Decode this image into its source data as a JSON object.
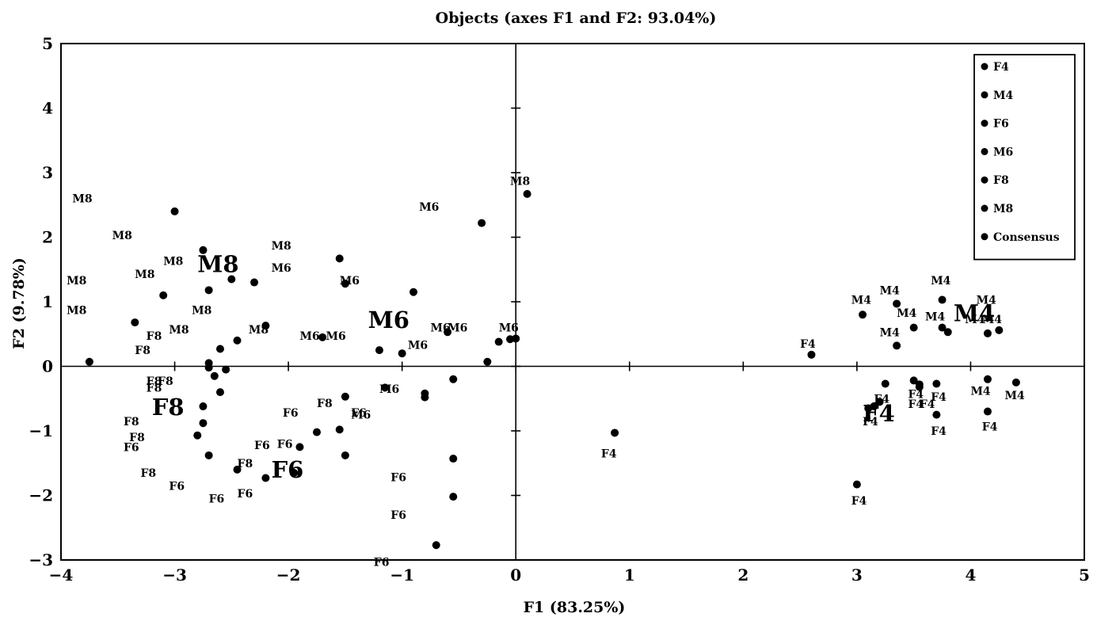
{
  "chart_data": {
    "type": "scatter",
    "title": "Objects (axes F1 and F2: 93.04%)",
    "xlabel": "F1 (83.25%)",
    "ylabel": "F2 (9.78%)",
    "xlim": [
      -4,
      5
    ],
    "ylim": [
      -3,
      5
    ],
    "xticks": [
      -4,
      -3,
      -2,
      -1,
      0,
      1,
      2,
      3,
      4,
      5
    ],
    "yticks": [
      -3,
      -2,
      -1,
      0,
      1,
      2,
      3,
      4,
      5
    ],
    "legend": [
      "F4",
      "M4",
      "F6",
      "M6",
      "F8",
      "M8",
      "Consensus"
    ],
    "legend_position": "top-right",
    "reference_lines": "x=0 and y=0",
    "points": [
      {
        "x": 0.1,
        "y": 2.67
      },
      {
        "x": -0.3,
        "y": 2.22
      },
      {
        "x": -0.9,
        "y": 1.15
      },
      {
        "x": -1.55,
        "y": 1.67
      },
      {
        "x": -1.5,
        "y": 1.28
      },
      {
        "x": -2.3,
        "y": 1.3
      },
      {
        "x": -2.5,
        "y": 1.35
      },
      {
        "x": -2.7,
        "y": 1.18
      },
      {
        "x": -2.75,
        "y": 1.8
      },
      {
        "x": -3.0,
        "y": 2.4
      },
      {
        "x": -3.1,
        "y": 1.1
      },
      {
        "x": -3.35,
        "y": 0.68
      },
      {
        "x": -3.75,
        "y": 0.07
      },
      {
        "x": -2.2,
        "y": 0.63
      },
      {
        "x": -2.45,
        "y": 0.4
      },
      {
        "x": -2.6,
        "y": 0.27
      },
      {
        "x": -1.7,
        "y": 0.45
      },
      {
        "x": -1.2,
        "y": 0.25
      },
      {
        "x": -1.0,
        "y": 0.2
      },
      {
        "x": -0.6,
        "y": 0.53
      },
      {
        "x": -0.15,
        "y": 0.38
      },
      {
        "x": -0.05,
        "y": 0.42
      },
      {
        "x": 0.0,
        "y": 0.43
      },
      {
        "x": -0.25,
        "y": 0.07
      },
      {
        "x": -2.7,
        "y": 0.05
      },
      {
        "x": -2.7,
        "y": -0.02
      },
      {
        "x": -2.65,
        "y": -0.15
      },
      {
        "x": -2.55,
        "y": -0.05
      },
      {
        "x": -2.6,
        "y": -0.4
      },
      {
        "x": -2.75,
        "y": -0.62
      },
      {
        "x": -2.75,
        "y": -0.88
      },
      {
        "x": -2.8,
        "y": -1.07
      },
      {
        "x": -2.7,
        "y": -1.38
      },
      {
        "x": -2.45,
        "y": -1.6
      },
      {
        "x": -2.2,
        "y": -1.73
      },
      {
        "x": -1.95,
        "y": -1.65
      },
      {
        "x": -1.9,
        "y": -1.25
      },
      {
        "x": -1.75,
        "y": -1.02
      },
      {
        "x": -1.55,
        "y": -0.98
      },
      {
        "x": -1.5,
        "y": -0.47
      },
      {
        "x": -1.5,
        "y": -1.38
      },
      {
        "x": -1.15,
        "y": -0.33
      },
      {
        "x": -0.8,
        "y": -0.42
      },
      {
        "x": -0.8,
        "y": -0.48
      },
      {
        "x": -0.55,
        "y": -0.2
      },
      {
        "x": -0.55,
        "y": -1.43
      },
      {
        "x": -0.55,
        "y": -2.02
      },
      {
        "x": -0.7,
        "y": -2.77
      },
      {
        "x": 0.87,
        "y": -1.03
      },
      {
        "x": 2.6,
        "y": 0.18
      },
      {
        "x": 3.0,
        "y": -1.83
      },
      {
        "x": 3.05,
        "y": 0.8
      },
      {
        "x": 3.35,
        "y": 0.97
      },
      {
        "x": 3.35,
        "y": 0.32
      },
      {
        "x": 3.5,
        "y": 0.6
      },
      {
        "x": 3.75,
        "y": 1.03
      },
      {
        "x": 3.75,
        "y": 0.6
      },
      {
        "x": 3.8,
        "y": 0.53
      },
      {
        "x": 4.15,
        "y": 0.51
      },
      {
        "x": 4.25,
        "y": 0.56
      },
      {
        "x": 3.25,
        "y": -0.27
      },
      {
        "x": 3.5,
        "y": -0.22
      },
      {
        "x": 3.55,
        "y": -0.32
      },
      {
        "x": 3.55,
        "y": -0.28
      },
      {
        "x": 3.7,
        "y": -0.27
      },
      {
        "x": 3.2,
        "y": -0.55
      },
      {
        "x": 3.15,
        "y": -0.62
      },
      {
        "x": 3.1,
        "y": -0.65
      },
      {
        "x": 3.7,
        "y": -0.75
      },
      {
        "x": 4.15,
        "y": -0.2
      },
      {
        "x": 4.4,
        "y": -0.25
      },
      {
        "x": 4.15,
        "y": -0.7
      }
    ],
    "point_labels": [
      {
        "text": "M8",
        "x": -3.9,
        "y": 2.6
      },
      {
        "text": "M8",
        "x": -3.55,
        "y": 2.03
      },
      {
        "text": "M8",
        "x": -3.1,
        "y": 1.63
      },
      {
        "text": "M8",
        "x": -3.35,
        "y": 1.43
      },
      {
        "text": "M8",
        "x": -3.95,
        "y": 1.33
      },
      {
        "text": "M8",
        "x": -3.95,
        "y": 0.87
      },
      {
        "text": "M8",
        "x": -2.85,
        "y": 0.87
      },
      {
        "text": "M8",
        "x": -3.05,
        "y": 0.57
      },
      {
        "text": "M8",
        "x": -2.35,
        "y": 0.57
      },
      {
        "text": "M8",
        "x": -2.15,
        "y": 1.87
      },
      {
        "text": "M8",
        "x": -0.05,
        "y": 2.87
      },
      {
        "text": "M6",
        "x": -0.85,
        "y": 2.47
      },
      {
        "text": "M6",
        "x": -2.15,
        "y": 1.53
      },
      {
        "text": "M6",
        "x": -1.55,
        "y": 1.33
      },
      {
        "text": "M6",
        "x": -1.9,
        "y": 0.47
      },
      {
        "text": "M6",
        "x": -1.67,
        "y": 0.47
      },
      {
        "text": "M6",
        "x": -0.95,
        "y": 0.33
      },
      {
        "text": "M6",
        "x": -0.75,
        "y": 0.6
      },
      {
        "text": "M6",
        "x": -0.6,
        "y": 0.6
      },
      {
        "text": "M6",
        "x": -0.15,
        "y": 0.6
      },
      {
        "text": "M6",
        "x": -1.2,
        "y": -0.35
      },
      {
        "text": "M6",
        "x": -1.45,
        "y": -0.75
      },
      {
        "text": "F8",
        "x": -3.25,
        "y": 0.47
      },
      {
        "text": "F8",
        "x": -3.35,
        "y": 0.25
      },
      {
        "text": "F8",
        "x": -3.25,
        "y": -0.23
      },
      {
        "text": "F8",
        "x": -3.15,
        "y": -0.23
      },
      {
        "text": "F8",
        "x": -3.25,
        "y": -0.33
      },
      {
        "text": "F8",
        "x": -3.45,
        "y": -0.85
      },
      {
        "text": "F8",
        "x": -3.4,
        "y": -1.1
      },
      {
        "text": "F8",
        "x": -3.3,
        "y": -1.65
      },
      {
        "text": "F8",
        "x": -2.45,
        "y": -1.5
      },
      {
        "text": "F8",
        "x": -1.75,
        "y": -0.57
      },
      {
        "text": "F6",
        "x": -3.45,
        "y": -1.25
      },
      {
        "text": "F6",
        "x": -3.05,
        "y": -1.85
      },
      {
        "text": "F6",
        "x": -2.7,
        "y": -2.05
      },
      {
        "text": "F6",
        "x": -2.45,
        "y": -1.97
      },
      {
        "text": "F6",
        "x": -2.05,
        "y": -0.72
      },
      {
        "text": "F6",
        "x": -2.3,
        "y": -1.22
      },
      {
        "text": "F6",
        "x": -2.1,
        "y": -1.2
      },
      {
        "text": "F6",
        "x": -1.45,
        "y": -0.72
      },
      {
        "text": "F6",
        "x": -1.1,
        "y": -1.72
      },
      {
        "text": "F6",
        "x": -1.1,
        "y": -2.3
      },
      {
        "text": "F6",
        "x": -1.25,
        "y": -3.03
      },
      {
        "text": "F4",
        "x": 0.75,
        "y": -1.35
      },
      {
        "text": "F4",
        "x": 2.5,
        "y": 0.35
      },
      {
        "text": "F4",
        "x": 2.95,
        "y": -2.08
      },
      {
        "text": "F4",
        "x": 3.15,
        "y": -0.5
      },
      {
        "text": "F4",
        "x": 3.05,
        "y": -0.85
      },
      {
        "text": "F4",
        "x": 3.45,
        "y": -0.43
      },
      {
        "text": "F4",
        "x": 3.45,
        "y": -0.58
      },
      {
        "text": "F4",
        "x": 3.55,
        "y": -0.58
      },
      {
        "text": "F4",
        "x": 3.65,
        "y": -0.47
      },
      {
        "text": "F4",
        "x": 3.65,
        "y": -1.0
      },
      {
        "text": "F4",
        "x": 4.1,
        "y": -0.93
      },
      {
        "text": "M4",
        "x": 2.95,
        "y": 1.03
      },
      {
        "text": "M4",
        "x": 3.2,
        "y": 1.18
      },
      {
        "text": "M4",
        "x": 3.65,
        "y": 1.33
      },
      {
        "text": "M4",
        "x": 3.35,
        "y": 0.83
      },
      {
        "text": "M4",
        "x": 3.2,
        "y": 0.53
      },
      {
        "text": "M4",
        "x": 3.6,
        "y": 0.77
      },
      {
        "text": "M4",
        "x": 4.05,
        "y": 1.03
      },
      {
        "text": "M4",
        "x": 3.95,
        "y": 0.73
      },
      {
        "text": "M4",
        "x": 4.1,
        "y": 0.73
      },
      {
        "text": "M4",
        "x": 4.0,
        "y": -0.38
      },
      {
        "text": "M4",
        "x": 4.3,
        "y": -0.45
      }
    ],
    "centroid_labels": [
      {
        "text": "M8",
        "x": -2.8,
        "y": 1.58
      },
      {
        "text": "M6",
        "x": -1.3,
        "y": 0.72
      },
      {
        "text": "F8",
        "x": -3.2,
        "y": -0.63
      },
      {
        "text": "F6",
        "x": -2.15,
        "y": -1.6
      },
      {
        "text": "F4",
        "x": 3.05,
        "y": -0.73
      },
      {
        "text": "M4",
        "x": 3.85,
        "y": 0.82
      }
    ]
  }
}
